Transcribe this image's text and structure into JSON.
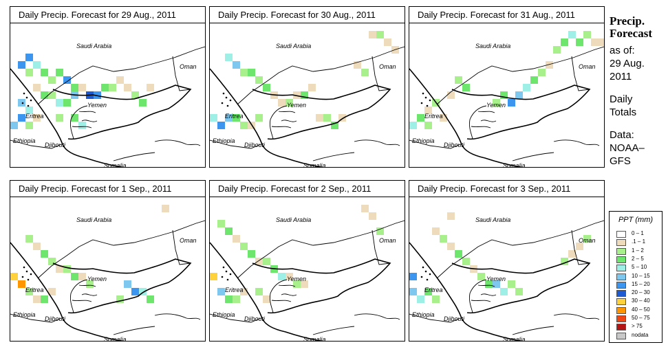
{
  "panels": [
    {
      "title": "Daily Precip. Forecast for  29 Aug., 2011",
      "labels": {
        "saudi": "Saudi Arabia",
        "oman": "Oman",
        "yemen": "Yemen",
        "eritrea": "Eritrea",
        "ethiopia": "Ethiopia",
        "djibouti": "Djibouti",
        "somalia": "Somalia"
      }
    },
    {
      "title": "Daily Precip. Forecast for  30 Aug., 2011",
      "labels": {
        "saudi": "Saudi Arabia",
        "oman": "Oman",
        "yemen": "Yemen",
        "eritrea": "Eritrea",
        "ethiopia": "Ethiopia",
        "djibouti": "Djibouti",
        "somalia": "Somalia"
      }
    },
    {
      "title": "Daily Precip. Forecast for  31 Aug., 2011",
      "labels": {
        "saudi": "Saudi Arabia",
        "oman": "Oman",
        "yemen": "Yemen",
        "eritrea": "Eritrea",
        "ethiopia": "Ethiopia",
        "djibouti": "Djibouti",
        "somalia": "Somalia"
      }
    },
    {
      "title": "Daily Precip. Forecast for  1 Sep., 2011",
      "labels": {
        "saudi": "Saudi Arabia",
        "oman": "Oman",
        "yemen": "Yemen",
        "eritrea": "Eritrea",
        "ethiopia": "Ethiopia",
        "djibouti": "Djibouti",
        "somalia": "Somalia"
      }
    },
    {
      "title": "Daily Precip. Forecast for  2 Sep., 2011",
      "labels": {
        "saudi": "Saudi Arabia",
        "oman": "Oman",
        "yemen": "Yemen",
        "eritrea": "Eritrea",
        "ethiopia": "Ethiopia",
        "djibouti": "Djibouti",
        "somalia": "Somalia"
      }
    },
    {
      "title": "Daily Precip. Forecast for  3 Sep., 2011",
      "labels": {
        "saudi": "Saudi Arabia",
        "oman": "Oman",
        "yemen": "Yemen",
        "eritrea": "Eritrea",
        "ethiopia": "Ethiopia",
        "djibouti": "Djibouti",
        "somalia": "Somalia"
      }
    }
  ],
  "sidebar": {
    "heading_line1": "Precip.",
    "heading_line2": "Forecast",
    "asof_line1": "as of:",
    "asof_line2": "29 Aug.",
    "asof_line3": "2011",
    "totals_line1": "Daily",
    "totals_line2": "Totals",
    "source_line1": "Data:",
    "source_line2": "NOAA–",
    "source_line3": "GFS"
  },
  "legend": {
    "title": "PPT (mm)",
    "items": [
      {
        "label": "0 – 1",
        "color": "#ffffff"
      },
      {
        "label": ".1 – 1",
        "color": "#eedbbb"
      },
      {
        "label": "1 – 2",
        "color": "#a8f08c"
      },
      {
        "label": "2 – 5",
        "color": "#6ee66e"
      },
      {
        "label": "5 – 10",
        "color": "#9ef0e6"
      },
      {
        "label": "10 – 15",
        "color": "#7ec8f0"
      },
      {
        "label": "15 – 20",
        "color": "#3c96f0"
      },
      {
        "label": "20 – 30",
        "color": "#1e5ad2"
      },
      {
        "label": "30 – 40",
        "color": "#ffd23c"
      },
      {
        "label": "40 – 50",
        "color": "#ff9600"
      },
      {
        "label": "50 – 75",
        "color": "#f04614"
      },
      {
        "label": "> 75",
        "color": "#b41414"
      },
      {
        "label": "nodata",
        "color": "#c8c8c8"
      }
    ]
  }
}
